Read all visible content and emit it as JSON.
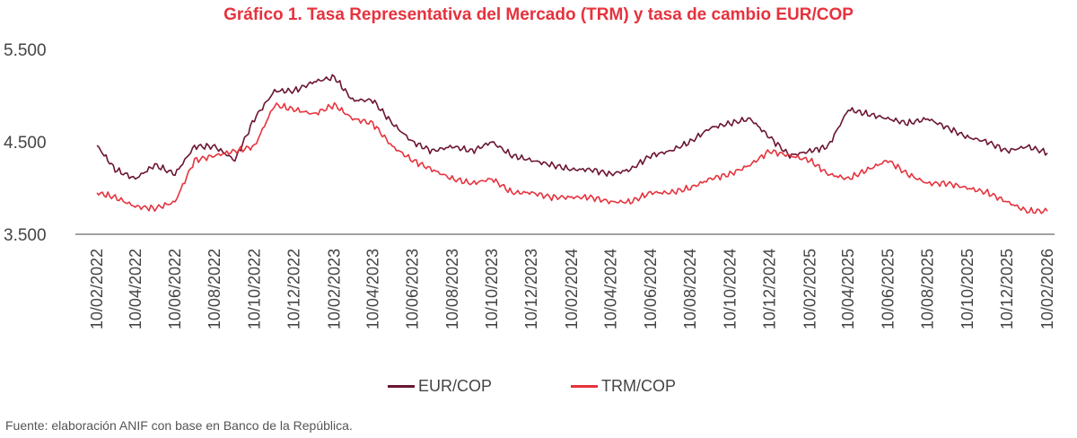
{
  "title": "Gráfico 1. Tasa Representativa del Mercado (TRM) y tasa de cambio EUR/COP",
  "source": "Fuente: elaboración ANIF con base en Banco de la República.",
  "colors": {
    "eur": "#6b1530",
    "trm": "#e6323d",
    "axis": "#444444",
    "text": "#444444"
  },
  "chart_data": {
    "type": "line",
    "title": "Gráfico 1. Tasa Representativa del Mercado (TRM) y tasa de cambio EUR/COP",
    "xlabel": "",
    "ylabel": "",
    "ylim": [
      3500,
      5500
    ],
    "yticks": [
      3500,
      4500,
      5500
    ],
    "ytick_labels": [
      "3.500",
      "4.500",
      "5.500"
    ],
    "xlim": [
      "2022-02-10",
      "2026-02-10"
    ],
    "xtick_labels": [
      "10/02/2022",
      "10/04/2022",
      "10/06/2022",
      "10/08/2022",
      "10/10/2022",
      "10/12/2022",
      "10/02/2023",
      "10/04/2023",
      "10/06/2023",
      "10/08/2023",
      "10/10/2023",
      "10/12/2023",
      "10/02/2024",
      "10/04/2024",
      "10/06/2024",
      "10/08/2024",
      "10/10/2024",
      "10/12/2024",
      "10/02/2025",
      "10/04/2025",
      "10/06/2025",
      "10/08/2025",
      "10/10/2025",
      "10/12/2025",
      "10/02/2026"
    ],
    "x": [
      "2022-02-10",
      "2022-03-10",
      "2022-04-10",
      "2022-05-10",
      "2022-06-10",
      "2022-07-10",
      "2022-08-10",
      "2022-09-10",
      "2022-10-10",
      "2022-11-10",
      "2022-12-10",
      "2023-01-10",
      "2023-02-10",
      "2023-03-10",
      "2023-04-10",
      "2023-05-10",
      "2023-06-10",
      "2023-07-10",
      "2023-08-10",
      "2023-09-10",
      "2023-10-10",
      "2023-11-10",
      "2023-12-10",
      "2024-01-10",
      "2024-02-10",
      "2024-03-10",
      "2024-04-10",
      "2024-05-10",
      "2024-06-10",
      "2024-07-10",
      "2024-08-10",
      "2024-09-10",
      "2024-10-10",
      "2024-11-10",
      "2024-12-10",
      "2025-01-10",
      "2025-02-10",
      "2025-03-10",
      "2025-04-10",
      "2025-05-10",
      "2025-06-10",
      "2025-07-10",
      "2025-08-10",
      "2025-09-10",
      "2025-10-10",
      "2025-11-10",
      "2025-12-10",
      "2026-01-10",
      "2026-02-10"
    ],
    "series": [
      {
        "name": "EUR/COP",
        "color": "#6b1530",
        "values": [
          4460,
          4200,
          4100,
          4250,
          4150,
          4450,
          4450,
          4300,
          4750,
          5050,
          5050,
          5150,
          5200,
          4950,
          4950,
          4700,
          4500,
          4400,
          4450,
          4400,
          4500,
          4350,
          4300,
          4250,
          4200,
          4200,
          4150,
          4200,
          4350,
          4400,
          4500,
          4650,
          4700,
          4750,
          4550,
          4350,
          4400,
          4450,
          4850,
          4800,
          4750,
          4700,
          4750,
          4650,
          4550,
          4500,
          4400,
          4450,
          4380
        ]
      },
      {
        "name": "TRM/COP",
        "color": "#e6323d",
        "values": [
          3950,
          3900,
          3800,
          3780,
          3850,
          4300,
          4350,
          4400,
          4450,
          4900,
          4850,
          4800,
          4900,
          4750,
          4700,
          4450,
          4300,
          4200,
          4100,
          4050,
          4100,
          3950,
          3950,
          3900,
          3900,
          3900,
          3850,
          3850,
          3950,
          3950,
          4000,
          4100,
          4150,
          4250,
          4400,
          4350,
          4300,
          4150,
          4100,
          4200,
          4300,
          4150,
          4050,
          4050,
          4000,
          3950,
          3850,
          3750,
          3750
        ]
      }
    ],
    "legend": {
      "position": "bottom",
      "entries": [
        "EUR/COP",
        "TRM/COP"
      ]
    },
    "grid": false
  }
}
